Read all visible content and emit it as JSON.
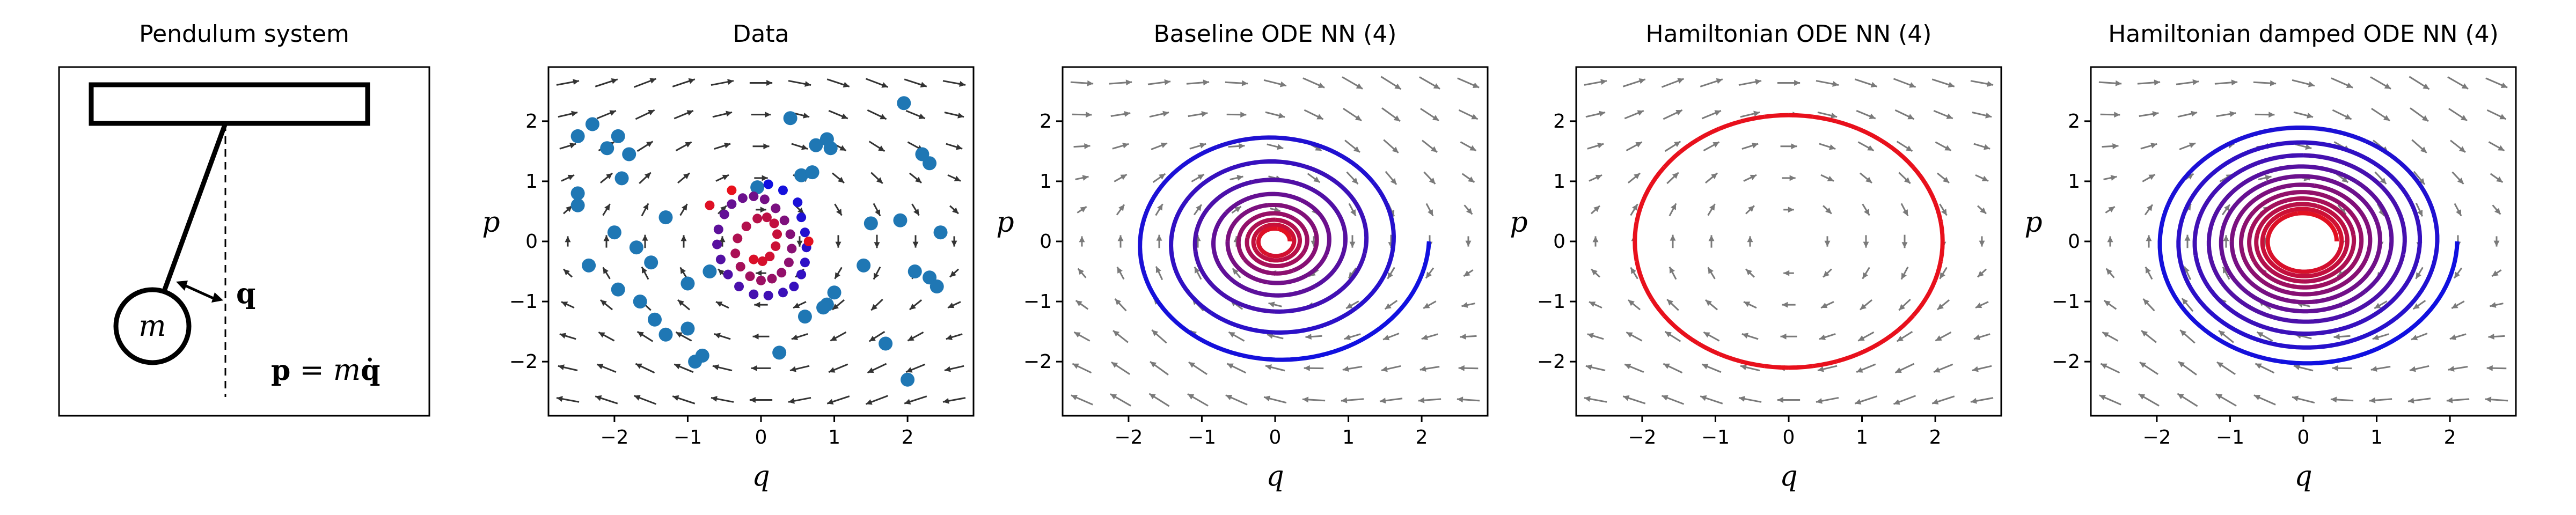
{
  "figure": {
    "pendulum_panel": {
      "title": "Pendulum system",
      "mass_label": "m",
      "angle_label": "q",
      "momentum_eq_bold_p": "p",
      "momentum_eq_rest": " = m",
      "momentum_eq_qdot": "q̇"
    }
  },
  "colors": {
    "scatter_blue": "#1f77b4",
    "vector_black": "#333333",
    "vector_gray": "#7a7a7a",
    "trajectory_start": "#1010e0",
    "trajectory_end": "#e8101c"
  },
  "chart_data": [
    {
      "type": "scatter",
      "title": "Data",
      "xlabel": "q",
      "ylabel": "p",
      "xlim": [
        -2.9,
        2.9
      ],
      "ylim": [
        -2.9,
        2.9
      ],
      "xticks": [
        -2,
        -1,
        0,
        1,
        2
      ],
      "yticks": [
        -2,
        -1,
        0,
        1,
        2
      ],
      "vector_field": {
        "kind": "pendulum",
        "color": "black"
      },
      "series": [
        {
          "color": "#1f77b4",
          "x": [
            -2.5,
            -2.3,
            -2.1,
            -1.95,
            -1.8,
            -2.5,
            -1.9,
            -1.3,
            -2.5,
            -2.0,
            -1.7,
            -1.5,
            -1.0,
            -0.7,
            -2.35,
            -1.95,
            -1.65,
            -1.45,
            -1.0,
            -0.8,
            -0.05,
            0.4,
            0.55,
            0.7,
            0.75,
            0.95,
            0.9,
            1.95,
            2.2,
            2.3,
            2.45,
            1.9,
            1.5,
            1.4,
            1.0,
            0.6,
            2.1,
            2.3,
            2.4,
            0.9,
            0.25,
            -0.9,
            -1.3,
            2.0,
            0.85,
            1.7
          ],
          "y": [
            1.75,
            1.95,
            1.55,
            1.75,
            1.45,
            0.8,
            1.05,
            0.4,
            0.6,
            0.15,
            -0.1,
            -0.35,
            -0.7,
            -0.5,
            -0.4,
            -0.8,
            -1.0,
            -1.3,
            -1.45,
            -1.9,
            0.9,
            2.05,
            1.1,
            1.15,
            1.6,
            1.55,
            1.7,
            2.3,
            1.45,
            1.3,
            0.15,
            0.35,
            0.3,
            -0.4,
            -0.85,
            -1.25,
            -0.5,
            -0.6,
            -0.75,
            -1.05,
            -1.85,
            -2.0,
            -1.55,
            -2.3,
            -1.1,
            -1.7
          ]
        },
        {
          "colormap": "blue-to-red",
          "x": [
            0.1,
            0.3,
            0.5,
            0.55,
            0.6,
            0.62,
            0.6,
            0.55,
            0.45,
            0.3,
            0.1,
            -0.1,
            -0.3,
            -0.45,
            -0.55,
            -0.6,
            -0.58,
            -0.5,
            -0.4,
            -0.25,
            -0.1,
            0.05,
            0.2,
            0.32,
            0.4,
            0.42,
            0.38,
            0.28,
            0.15,
            0.0,
            -0.15,
            -0.28,
            -0.35,
            -0.32,
            -0.2,
            -0.05,
            0.08,
            0.18,
            0.22,
            0.2,
            0.12,
            0.02,
            -0.1,
            -0.7,
            0.65,
            -0.4
          ],
          "y": [
            0.95,
            0.85,
            0.65,
            0.4,
            0.15,
            -0.1,
            -0.35,
            -0.55,
            -0.75,
            -0.85,
            -0.9,
            -0.88,
            -0.75,
            -0.55,
            -0.3,
            -0.05,
            0.2,
            0.45,
            0.62,
            0.72,
            0.75,
            0.7,
            0.55,
            0.35,
            0.12,
            -0.12,
            -0.35,
            -0.52,
            -0.62,
            -0.65,
            -0.58,
            -0.42,
            -0.2,
            0.05,
            0.25,
            0.38,
            0.4,
            0.3,
            0.12,
            -0.08,
            -0.25,
            -0.33,
            -0.3,
            0.6,
            0.0,
            0.85
          ]
        }
      ]
    },
    {
      "type": "line",
      "title": "Baseline ODE NN (4)",
      "xlabel": "q",
      "ylabel": "p",
      "xlim": [
        -2.9,
        2.9
      ],
      "ylim": [
        -2.9,
        2.9
      ],
      "xticks": [
        -2,
        -1,
        0,
        1,
        2
      ],
      "yticks": [
        -2,
        -1,
        0,
        1,
        2
      ],
      "vector_field": {
        "kind": "damped",
        "color": "gray"
      },
      "trajectory": {
        "q0": 2.1,
        "p0": 0.0,
        "k_q": 0.86,
        "k_p": 0.86,
        "decay_per_turn": 0.77,
        "turns": 9,
        "colormap": "blue-to-red"
      }
    },
    {
      "type": "line",
      "title": "Hamiltonian ODE NN (4)",
      "xlabel": "q",
      "ylabel": "p",
      "xlim": [
        -2.9,
        2.9
      ],
      "ylim": [
        -2.9,
        2.9
      ],
      "xticks": [
        -2,
        -1,
        0,
        1,
        2
      ],
      "yticks": [
        -2,
        -1,
        0,
        1,
        2
      ],
      "vector_field": {
        "kind": "pendulum",
        "color": "gray"
      },
      "trajectory": {
        "q0": 2.1,
        "p0": 0.0,
        "k_q": 1.0,
        "k_p": 1.0,
        "decay_per_turn": 1.0,
        "turns": 1,
        "colormap": "red"
      }
    },
    {
      "type": "line",
      "title": "Hamiltonian damped ODE NN (4)",
      "xlabel": "q",
      "ylabel": "p",
      "xlim": [
        -2.9,
        2.9
      ],
      "ylim": [
        -2.9,
        2.9
      ],
      "xticks": [
        -2,
        -1,
        0,
        1,
        2
      ],
      "yticks": [
        -2,
        -1,
        0,
        1,
        2
      ],
      "vector_field": {
        "kind": "damped",
        "color": "gray"
      },
      "trajectory": {
        "q0": 2.1,
        "p0": 0.0,
        "k_q": 0.86,
        "k_p": 0.86,
        "decay_per_turn": 0.87,
        "turns": 11,
        "colormap": "blue-to-red"
      }
    }
  ]
}
